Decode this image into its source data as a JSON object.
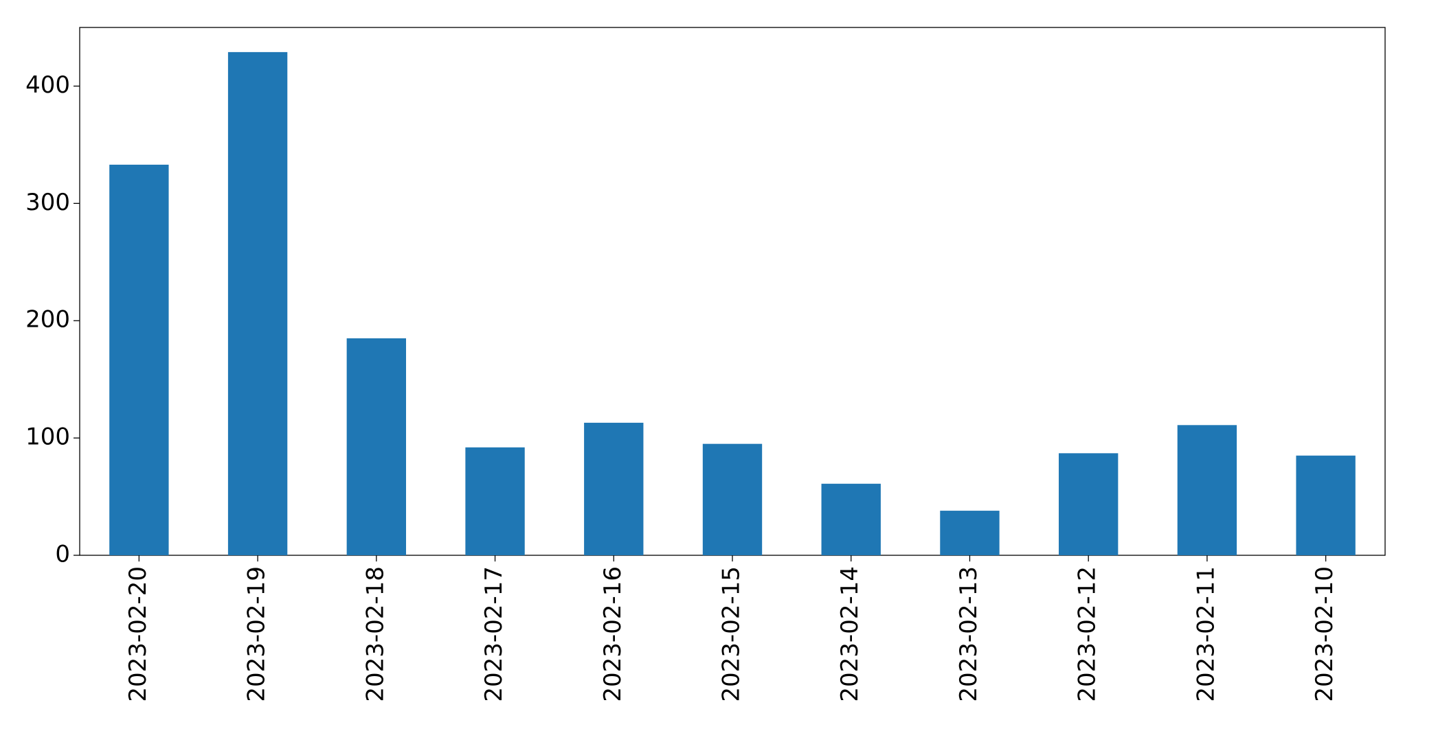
{
  "chart_data": {
    "type": "bar",
    "categories": [
      "2023-02-20",
      "2023-02-19",
      "2023-02-18",
      "2023-02-17",
      "2023-02-16",
      "2023-02-15",
      "2023-02-14",
      "2023-02-13",
      "2023-02-12",
      "2023-02-11",
      "2023-02-10"
    ],
    "values": [
      333,
      429,
      185,
      92,
      113,
      95,
      61,
      38,
      87,
      111,
      85
    ],
    "color": "#1f77b4",
    "ylim": [
      0,
      450
    ],
    "yticks": [
      0,
      100,
      200,
      300,
      400
    ],
    "grid": false
  }
}
